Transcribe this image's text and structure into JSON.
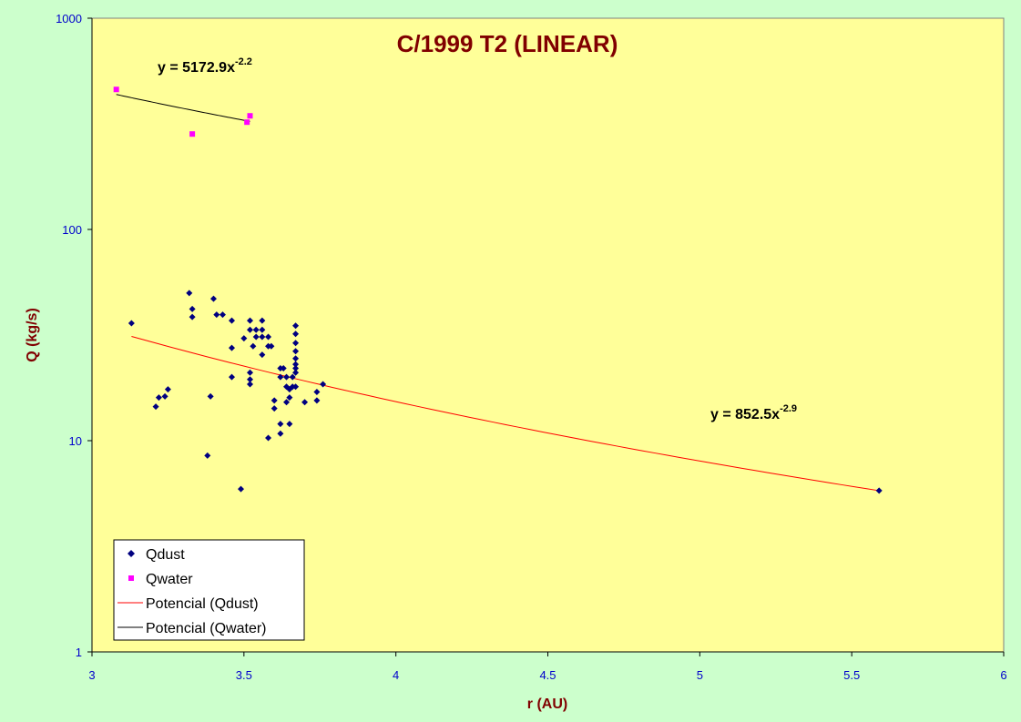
{
  "chart_data": {
    "type": "scatter",
    "title": "C/1999 T2 (LINEAR)",
    "xlabel": "r (AU)",
    "ylabel": "Q (kg/s)",
    "xlim": [
      3,
      6
    ],
    "ylim": [
      1,
      1000
    ],
    "y_scale": "log",
    "x_ticks": [
      "3",
      "3.5",
      "4",
      "4.5",
      "5",
      "5.5",
      "6"
    ],
    "y_ticks": [
      "1",
      "10",
      "100",
      "1000"
    ],
    "grid": false,
    "legend_position": "bottom-left",
    "colors": {
      "plot_background": "#ffff99",
      "page_background": "#ccffcc",
      "qdust": "#000080",
      "qwater": "#ff00ff",
      "fit_qdust": "#ff0000",
      "fit_qwater": "#000000"
    },
    "series": [
      {
        "name": "Qdust",
        "marker": "diamond",
        "points": [
          [
            3.13,
            36
          ],
          [
            3.21,
            14.5
          ],
          [
            3.22,
            16
          ],
          [
            3.24,
            16.2
          ],
          [
            3.25,
            17.5
          ],
          [
            3.32,
            50
          ],
          [
            3.33,
            38.5
          ],
          [
            3.33,
            42
          ],
          [
            3.38,
            8.5
          ],
          [
            3.39,
            16.2
          ],
          [
            3.4,
            47
          ],
          [
            3.41,
            39.5
          ],
          [
            3.43,
            39.5
          ],
          [
            3.46,
            37
          ],
          [
            3.46,
            27.5
          ],
          [
            3.46,
            20
          ],
          [
            3.49,
            5.9
          ],
          [
            3.5,
            30.5
          ],
          [
            3.52,
            37
          ],
          [
            3.52,
            33.5
          ],
          [
            3.52,
            21
          ],
          [
            3.52,
            19.5
          ],
          [
            3.52,
            18.5
          ],
          [
            3.53,
            28
          ],
          [
            3.54,
            33.5
          ],
          [
            3.54,
            31
          ],
          [
            3.56,
            37
          ],
          [
            3.56,
            33.5
          ],
          [
            3.56,
            31
          ],
          [
            3.56,
            25.5
          ],
          [
            3.58,
            31
          ],
          [
            3.58,
            28
          ],
          [
            3.58,
            10.3
          ],
          [
            3.59,
            28
          ],
          [
            3.6,
            15.5
          ],
          [
            3.6,
            14.2
          ],
          [
            3.62,
            22
          ],
          [
            3.62,
            20
          ],
          [
            3.62,
            12
          ],
          [
            3.62,
            10.8
          ],
          [
            3.63,
            22
          ],
          [
            3.64,
            20
          ],
          [
            3.64,
            18
          ],
          [
            3.64,
            15.2
          ],
          [
            3.65,
            16
          ],
          [
            3.65,
            17.5
          ],
          [
            3.65,
            12
          ],
          [
            3.66,
            20
          ],
          [
            3.66,
            18
          ],
          [
            3.67,
            35
          ],
          [
            3.67,
            32
          ],
          [
            3.67,
            29
          ],
          [
            3.67,
            26.5
          ],
          [
            3.67,
            24.5
          ],
          [
            3.67,
            23
          ],
          [
            3.67,
            22
          ],
          [
            3.67,
            21
          ],
          [
            3.67,
            18
          ],
          [
            3.7,
            15.2
          ],
          [
            3.74,
            15.5
          ],
          [
            3.74,
            17
          ],
          [
            3.76,
            18.5
          ],
          [
            5.59,
            5.8
          ]
        ]
      },
      {
        "name": "Qwater",
        "marker": "square",
        "points": [
          [
            3.08,
            460
          ],
          [
            3.33,
            283
          ],
          [
            3.51,
            322
          ],
          [
            3.52,
            345
          ]
        ]
      },
      {
        "name": "Potencial (Qdust)",
        "type": "power-fit",
        "coefficient": 852.5,
        "exponent": -2.9,
        "x_range": [
          3.13,
          5.59
        ],
        "equation": "y = 852.5x",
        "equation_exponent": "-2.9"
      },
      {
        "name": "Potencial (Qwater)",
        "type": "power-fit",
        "coefficient": 5172.9,
        "exponent": -2.2,
        "x_range": [
          3.08,
          3.52
        ],
        "equation": "y = 5172.9x",
        "equation_exponent": "-2.2"
      }
    ]
  }
}
